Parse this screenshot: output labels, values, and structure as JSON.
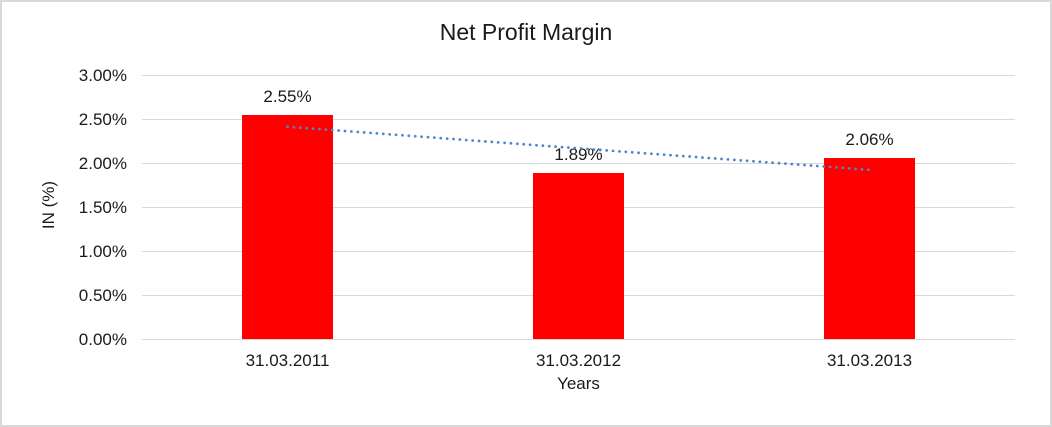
{
  "chart_data": {
    "type": "bar",
    "title": "Net Profit Margin",
    "xlabel": "Years",
    "ylabel": "IN (%)",
    "categories": [
      "31.03.2011",
      "31.03.2012",
      "31.03.2013"
    ],
    "values": [
      2.55,
      1.89,
      2.06
    ],
    "data_labels": [
      "2.55%",
      "1.89%",
      "2.06%"
    ],
    "y_ticks": [
      {
        "value": 3.0,
        "label": "3.00%"
      },
      {
        "value": 2.5,
        "label": "2.50%"
      },
      {
        "value": 2.0,
        "label": "2.00%"
      },
      {
        "value": 1.5,
        "label": "1.50%"
      },
      {
        "value": 1.0,
        "label": "1.00%"
      },
      {
        "value": 0.5,
        "label": "0.50%"
      },
      {
        "value": 0.0,
        "label": "0.00%"
      }
    ],
    "ylim": [
      0,
      3
    ],
    "grid": true,
    "legend": "none",
    "colors": {
      "bar": "#ff0000",
      "trendline": "#4f86c6",
      "gridline": "#d9d9d9",
      "text": "#1a1a1a",
      "frame_border": "#d9d9d9",
      "background": "#ffffff"
    },
    "trendline": {
      "type": "linear",
      "style": "dotted"
    }
  }
}
